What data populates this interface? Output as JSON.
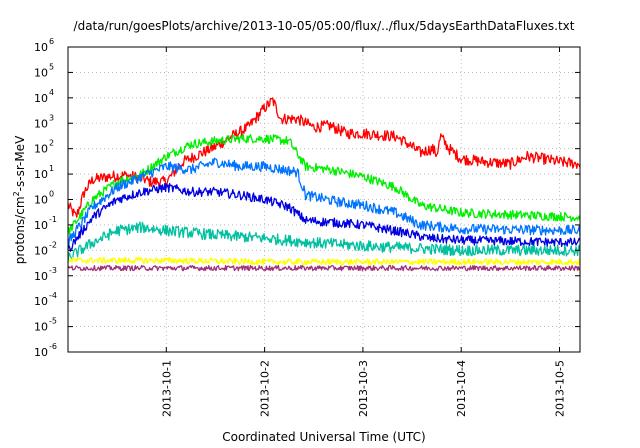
{
  "chart_data": {
    "type": "line",
    "title": "/data/run/goesPlots/archive/2013-10-05/05:00/flux/../flux/5daysEarthDataFluxes.txt",
    "xlabel": "Coordinated Universal Time (UTC)",
    "ylabel_parts": {
      "base": "protons/cm",
      "sup": "2",
      "rest": "-s-sr-MeV"
    },
    "y_scale": "log",
    "ylim": [
      1e-06,
      1000000.0
    ],
    "y_ticks": [
      {
        "value": 1e-06,
        "base": "10",
        "exp": "-6"
      },
      {
        "value": 1e-05,
        "base": "10",
        "exp": "-5"
      },
      {
        "value": 0.0001,
        "base": "10",
        "exp": "-4"
      },
      {
        "value": 0.001,
        "base": "10",
        "exp": "-3"
      },
      {
        "value": 0.01,
        "base": "10",
        "exp": "-2"
      },
      {
        "value": 0.1,
        "base": "10",
        "exp": "-1"
      },
      {
        "value": 1,
        "base": "10",
        "exp": "0"
      },
      {
        "value": 10,
        "base": "10",
        "exp": "1"
      },
      {
        "value": 100,
        "base": "10",
        "exp": "2"
      },
      {
        "value": 1000,
        "base": "10",
        "exp": "3"
      },
      {
        "value": 10000,
        "base": "10",
        "exp": "4"
      },
      {
        "value": 100000,
        "base": "10",
        "exp": "5"
      },
      {
        "value": 1000000,
        "base": "10",
        "exp": "6"
      }
    ],
    "xlim": [
      "2013-09-30T00:00",
      "2013-10-05T05:00"
    ],
    "x_ticks": [
      {
        "value": "2013-10-01T00:00",
        "label": "2013-10-1"
      },
      {
        "value": "2013-10-02T00:00",
        "label": "2013-10-2"
      },
      {
        "value": "2013-10-03T00:00",
        "label": "2013-10-3"
      },
      {
        "value": "2013-10-04T00:00",
        "label": "2013-10-4"
      },
      {
        "value": "2013-10-05T00:00",
        "label": "2013-10-5"
      }
    ],
    "grid": true,
    "legend": "none",
    "series": [
      {
        "color": "#ff0000",
        "noise": 0.22,
        "points": [
          [
            "2013-09-30T00:00",
            0.6
          ],
          [
            "2013-09-30T02:00",
            0.2
          ],
          [
            "2013-09-30T04:00",
            2
          ],
          [
            "2013-09-30T06:00",
            6
          ],
          [
            "2013-09-30T10:00",
            8
          ],
          [
            "2013-09-30T14:00",
            9
          ],
          [
            "2013-09-30T18:00",
            7
          ],
          [
            "2013-09-30T20:00",
            5
          ],
          [
            "2013-10-01T00:00",
            5
          ],
          [
            "2013-10-01T04:00",
            30
          ],
          [
            "2013-10-01T08:00",
            60
          ],
          [
            "2013-10-01T12:00",
            120
          ],
          [
            "2013-10-01T16:00",
            300
          ],
          [
            "2013-10-01T20:00",
            700
          ],
          [
            "2013-10-02T00:00",
            4000
          ],
          [
            "2013-10-02T02:00",
            8000
          ],
          [
            "2013-10-02T04:00",
            1500
          ],
          [
            "2013-10-02T08:00",
            1500
          ],
          [
            "2013-10-02T12:00",
            700
          ],
          [
            "2013-10-02T16:00",
            800
          ],
          [
            "2013-10-02T20:00",
            400
          ],
          [
            "2013-10-03T00:00",
            400
          ],
          [
            "2013-10-03T04:00",
            350
          ],
          [
            "2013-10-03T08:00",
            300
          ],
          [
            "2013-10-03T10:00",
            200
          ],
          [
            "2013-10-03T14:00",
            70
          ],
          [
            "2013-10-03T18:00",
            60
          ],
          [
            "2013-10-03T17:00",
            100
          ],
          [
            "2013-10-03T19:00",
            300
          ],
          [
            "2013-10-03T21:00",
            100
          ],
          [
            "2013-10-04T00:00",
            40
          ],
          [
            "2013-10-04T06:00",
            30
          ],
          [
            "2013-10-04T12:00",
            25
          ],
          [
            "2013-10-04T16:00",
            50
          ],
          [
            "2013-10-04T20:00",
            40
          ],
          [
            "2013-10-05T00:00",
            30
          ],
          [
            "2013-10-05T05:00",
            25
          ]
        ]
      },
      {
        "color": "#00ee00",
        "noise": 0.18,
        "points": [
          [
            "2013-09-30T00:00",
            0.05
          ],
          [
            "2013-09-30T06:00",
            1
          ],
          [
            "2013-09-30T12:00",
            5
          ],
          [
            "2013-09-30T18:00",
            10
          ],
          [
            "2013-10-01T00:00",
            50
          ],
          [
            "2013-10-01T06:00",
            150
          ],
          [
            "2013-10-01T12:00",
            200
          ],
          [
            "2013-10-01T18:00",
            250
          ],
          [
            "2013-10-02T00:00",
            250
          ],
          [
            "2013-10-02T06:00",
            200
          ],
          [
            "2013-10-02T10:00",
            20
          ],
          [
            "2013-10-02T16:00",
            15
          ],
          [
            "2013-10-03T00:00",
            8
          ],
          [
            "2013-10-03T08:00",
            3
          ],
          [
            "2013-10-03T14:00",
            0.6
          ],
          [
            "2013-10-04T00:00",
            0.3
          ],
          [
            "2013-10-05T05:00",
            0.2
          ]
        ]
      },
      {
        "color": "#0073ff",
        "noise": 0.2,
        "points": [
          [
            "2013-09-30T00:00",
            0.02
          ],
          [
            "2013-09-30T06:00",
            0.5
          ],
          [
            "2013-09-30T12:00",
            3
          ],
          [
            "2013-09-30T18:00",
            8
          ],
          [
            "2013-10-01T00:00",
            20
          ],
          [
            "2013-10-01T06:00",
            15
          ],
          [
            "2013-10-01T12:00",
            30
          ],
          [
            "2013-10-01T18:00",
            20
          ],
          [
            "2013-10-02T00:00",
            20
          ],
          [
            "2013-10-02T08:00",
            12
          ],
          [
            "2013-10-02T10:00",
            1.5
          ],
          [
            "2013-10-02T18:00",
            0.8
          ],
          [
            "2013-10-03T00:00",
            0.6
          ],
          [
            "2013-10-03T08:00",
            0.3
          ],
          [
            "2013-10-03T14:00",
            0.1
          ],
          [
            "2013-10-04T00:00",
            0.07
          ],
          [
            "2013-10-05T05:00",
            0.06
          ]
        ]
      },
      {
        "color": "#0000e0",
        "noise": 0.18,
        "points": [
          [
            "2013-09-30T00:00",
            0.01
          ],
          [
            "2013-09-30T06:00",
            0.2
          ],
          [
            "2013-09-30T12:00",
            1
          ],
          [
            "2013-09-30T18:00",
            2
          ],
          [
            "2013-10-01T00:00",
            3
          ],
          [
            "2013-10-01T06:00",
            2
          ],
          [
            "2013-10-01T12:00",
            2
          ],
          [
            "2013-10-01T18:00",
            1.5
          ],
          [
            "2013-10-02T00:00",
            1
          ],
          [
            "2013-10-02T06:00",
            0.5
          ],
          [
            "2013-10-02T10:00",
            0.15
          ],
          [
            "2013-10-02T18:00",
            0.12
          ],
          [
            "2013-10-03T00:00",
            0.1
          ],
          [
            "2013-10-03T10:00",
            0.05
          ],
          [
            "2013-10-03T16:00",
            0.03
          ],
          [
            "2013-10-04T00:00",
            0.025
          ],
          [
            "2013-10-05T05:00",
            0.02
          ]
        ]
      },
      {
        "color": "#00c0a0",
        "noise": 0.22,
        "points": [
          [
            "2013-09-30T00:00",
            0.005
          ],
          [
            "2013-09-30T06:00",
            0.02
          ],
          [
            "2013-09-30T12:00",
            0.06
          ],
          [
            "2013-09-30T18:00",
            0.08
          ],
          [
            "2013-10-01T00:00",
            0.06
          ],
          [
            "2013-10-01T12:00",
            0.04
          ],
          [
            "2013-10-02T00:00",
            0.03
          ],
          [
            "2013-10-02T12:00",
            0.02
          ],
          [
            "2013-10-03T00:00",
            0.015
          ],
          [
            "2013-10-04T00:00",
            0.01
          ],
          [
            "2013-10-05T05:00",
            0.01
          ]
        ]
      },
      {
        "color": "#ffff00",
        "noise": 0.12,
        "points": [
          [
            "2013-09-30T00:00",
            0.004
          ],
          [
            "2013-10-01T00:00",
            0.004
          ],
          [
            "2013-10-02T00:00",
            0.0035
          ],
          [
            "2013-10-03T00:00",
            0.0035
          ],
          [
            "2013-10-04T00:00",
            0.0035
          ],
          [
            "2013-10-05T05:00",
            0.0035
          ]
        ]
      },
      {
        "color": "#a0307a",
        "noise": 0.1,
        "points": [
          [
            "2013-09-30T00:00",
            0.002
          ],
          [
            "2013-10-01T00:00",
            0.002
          ],
          [
            "2013-10-02T00:00",
            0.002
          ],
          [
            "2013-10-03T00:00",
            0.002
          ],
          [
            "2013-10-04T00:00",
            0.002
          ],
          [
            "2013-10-05T05:00",
            0.002
          ]
        ]
      }
    ]
  }
}
